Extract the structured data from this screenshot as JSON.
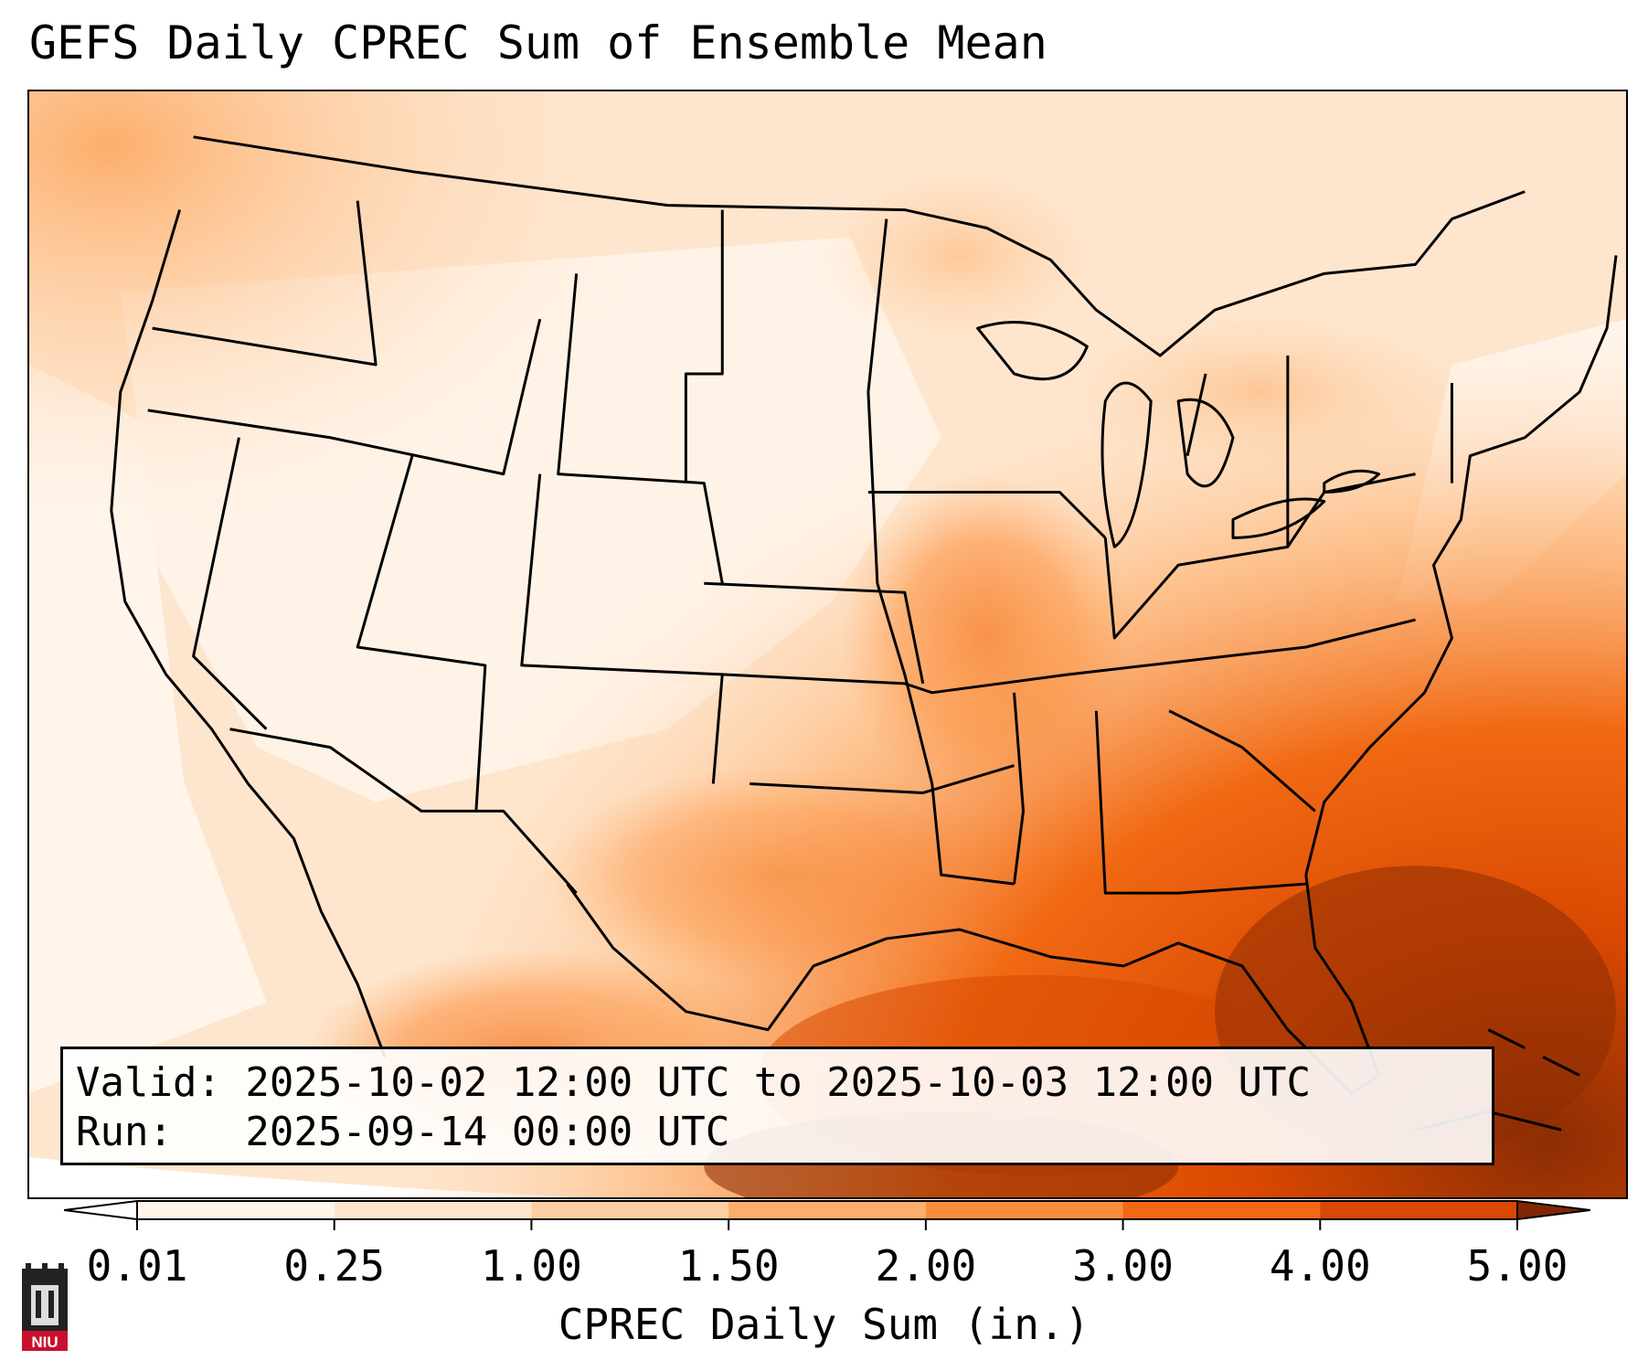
{
  "title": "GEFS Daily CPREC Sum of Ensemble Mean",
  "info": {
    "valid_line": "Valid: 2025-10-02 12:00 UTC to 2025-10-03 12:00 UTC",
    "run_line": "Run:   2025-09-14 00:00 UTC"
  },
  "colorbar": {
    "label": "CPREC Daily Sum (in.)",
    "ticks": [
      "0.01",
      "0.25",
      "1.00",
      "1.50",
      "2.00",
      "3.00",
      "4.00",
      "5.00"
    ],
    "colors": [
      "#fff5eb",
      "#fee6ce",
      "#fdd0a2",
      "#fdae6b",
      "#fd8d3c",
      "#f16913",
      "#d94801",
      "#8c2d04"
    ],
    "under_color": "#ffffff",
    "over_color": "#7f2704"
  },
  "logo": {
    "text": "NIU"
  }
}
